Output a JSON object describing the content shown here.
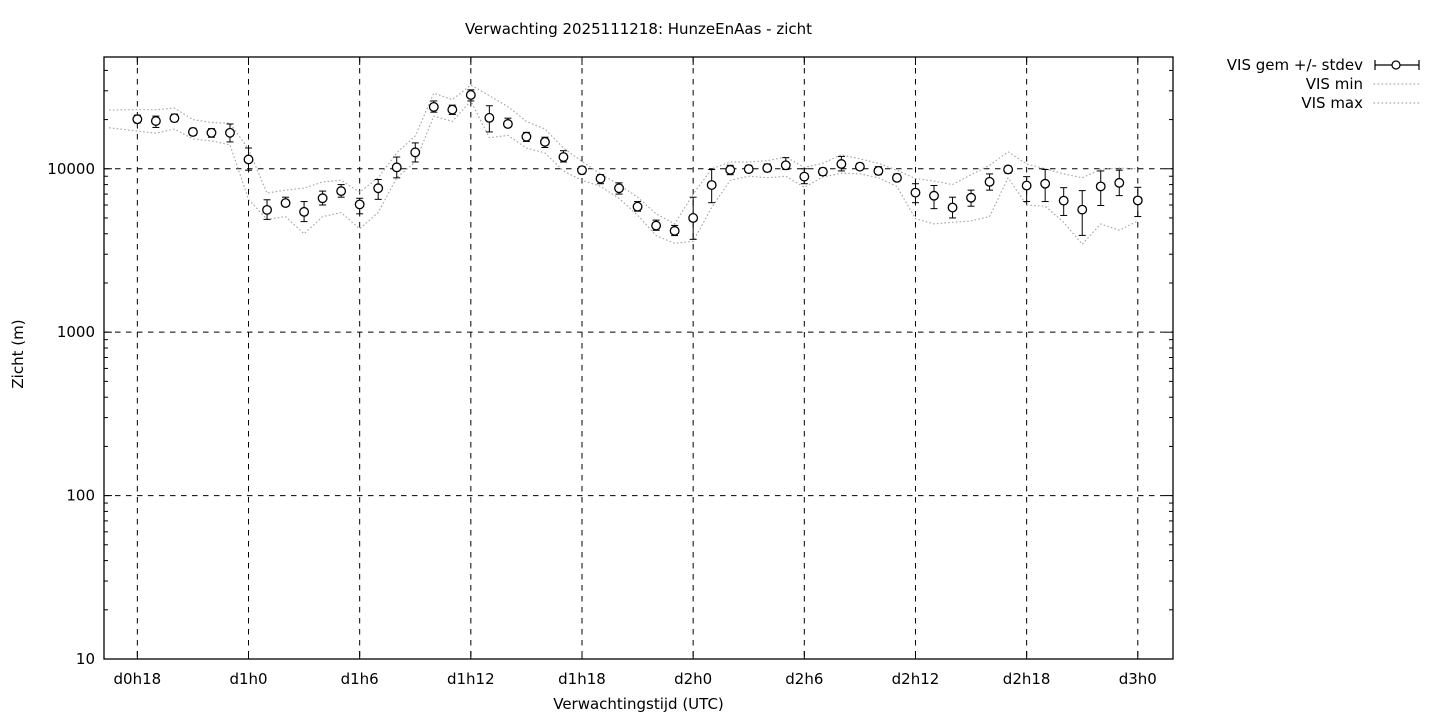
{
  "colors": {
    "foreground": "#000000",
    "background": "#ffffff",
    "dotted_line": "#a8a8a8"
  },
  "chart_data": {
    "type": "scatter",
    "title": "Verwachting 2025111218: HunzeEnAas - zicht",
    "xlabel": "Verwachtingstijd (UTC)",
    "ylabel": "Zicht (m)",
    "y_scale": "log",
    "ylim": [
      10,
      48300
    ],
    "xlim_hours": [
      16.2,
      73.9
    ],
    "grid": true,
    "legend_position": "outside-top-right",
    "x_ticks": [
      {
        "hour": 18,
        "label": "d0h18"
      },
      {
        "hour": 24,
        "label": "d1h0"
      },
      {
        "hour": 30,
        "label": "d1h6"
      },
      {
        "hour": 36,
        "label": "d1h12"
      },
      {
        "hour": 42,
        "label": "d1h18"
      },
      {
        "hour": 48,
        "label": "d2h0"
      },
      {
        "hour": 54,
        "label": "d2h6"
      },
      {
        "hour": 60,
        "label": "d2h12"
      },
      {
        "hour": 66,
        "label": "d2h18"
      },
      {
        "hour": 72,
        "label": "d3h0"
      }
    ],
    "y_ticks": [
      {
        "value": 10,
        "label": "10"
      },
      {
        "value": 100,
        "label": "100"
      },
      {
        "value": 1000,
        "label": "1000"
      },
      {
        "value": 10000,
        "label": "10000"
      }
    ],
    "series": [
      {
        "name": "VIS gem +/- stdev",
        "type": "errorbar-points",
        "marker": "open-circle",
        "color": "#000000",
        "x_hours": [
          18,
          19,
          20,
          21,
          22,
          23,
          24,
          25,
          26,
          27,
          28,
          29,
          30,
          31,
          32,
          33,
          34,
          35,
          36,
          37,
          38,
          39,
          40,
          41,
          42,
          43,
          44,
          45,
          46,
          47,
          48,
          49,
          50,
          51,
          52,
          53,
          54,
          55,
          56,
          57,
          58,
          59,
          60,
          61,
          62,
          63,
          64,
          65,
          66,
          67,
          68,
          69,
          70,
          71,
          72
        ],
        "values": [
          20100,
          19600,
          20400,
          16800,
          16600,
          16600,
          11400,
          5600,
          6170,
          5450,
          6600,
          7300,
          6050,
          7600,
          10200,
          12600,
          23900,
          23000,
          28300,
          20500,
          18800,
          15700,
          14600,
          11800,
          9800,
          8700,
          7600,
          5860,
          4490,
          4170,
          5000,
          7950,
          9850,
          9950,
          10100,
          10500,
          8950,
          9600,
          10700,
          10300,
          9700,
          8800,
          7140,
          6840,
          5790,
          6650,
          8320,
          9900,
          7890,
          8100,
          6380,
          5620,
          7800,
          8200,
          6400
        ],
        "err_lo": [
          19100,
          17900,
          19400,
          16000,
          15600,
          14600,
          9800,
          4900,
          5900,
          4750,
          6000,
          6700,
          5300,
          6500,
          8800,
          11000,
          22200,
          21500,
          26000,
          16800,
          18000,
          14700,
          13500,
          11000,
          9300,
          8100,
          7000,
          5500,
          4200,
          3900,
          3700,
          6200,
          9200,
          9500,
          9600,
          9900,
          8100,
          9100,
          9700,
          9900,
          9200,
          8400,
          6200,
          5700,
          5000,
          5900,
          7400,
          9400,
          6300,
          6300,
          5180,
          3910,
          5960,
          6850,
          5100
        ],
        "err_hi": [
          21300,
          21000,
          21600,
          17700,
          17600,
          18800,
          13400,
          6460,
          6700,
          6300,
          7300,
          8000,
          6600,
          8600,
          11800,
          14400,
          26000,
          24500,
          30400,
          24300,
          20400,
          16700,
          15600,
          12900,
          10300,
          9200,
          8200,
          6300,
          4850,
          4500,
          6700,
          9900,
          10500,
          10500,
          10700,
          11700,
          10000,
          10100,
          11900,
          10800,
          10300,
          9300,
          8100,
          7900,
          6700,
          7400,
          9300,
          10400,
          8950,
          9900,
          7660,
          7350,
          9700,
          9800,
          7700
        ]
      },
      {
        "name": "VIS min",
        "type": "dotted-line",
        "color": "#a8a8a8",
        "x_hours": [
          16.5,
          18,
          19,
          20,
          21,
          22,
          23,
          24,
          25,
          26,
          27,
          28,
          29,
          30,
          31,
          32,
          33,
          34,
          35,
          36,
          37,
          38,
          39,
          40,
          41,
          42,
          43,
          44,
          45,
          46,
          47,
          48,
          49,
          50,
          51,
          52,
          53,
          54,
          55,
          56,
          57,
          58,
          59,
          60,
          61,
          62,
          63,
          64,
          65,
          66,
          67,
          68,
          69,
          70,
          71,
          72
        ],
        "values": [
          17800,
          17000,
          16500,
          17500,
          15200,
          14800,
          14000,
          6500,
          4900,
          5100,
          4000,
          5100,
          5400,
          4300,
          5400,
          8800,
          11000,
          21000,
          19500,
          26000,
          15500,
          16000,
          13400,
          12500,
          9700,
          8500,
          7800,
          6600,
          5200,
          3900,
          3500,
          3600,
          5800,
          8500,
          9000,
          8800,
          9000,
          7700,
          8900,
          9400,
          9300,
          8800,
          7800,
          4950,
          4600,
          4700,
          4800,
          5100,
          8800,
          6000,
          5900,
          4700,
          3450,
          4600,
          4200,
          4800
        ]
      },
      {
        "name": "VIS max",
        "type": "dotted-line",
        "color": "#a8a8a8",
        "x_hours": [
          16.5,
          18,
          19,
          20,
          21,
          22,
          23,
          24,
          25,
          26,
          27,
          28,
          29,
          30,
          31,
          32,
          33,
          34,
          35,
          36,
          37,
          38,
          39,
          40,
          41,
          42,
          43,
          44,
          45,
          46,
          47,
          48,
          49,
          50,
          51,
          52,
          53,
          54,
          55,
          56,
          57,
          58,
          59,
          60,
          61,
          62,
          63,
          64,
          65,
          66,
          67,
          68,
          69,
          70,
          71,
          72
        ],
        "values": [
          22900,
          23000,
          23000,
          23500,
          20000,
          19200,
          19000,
          13200,
          7100,
          7400,
          7600,
          8300,
          8500,
          7200,
          8800,
          12500,
          15900,
          29000,
          26500,
          32500,
          28000,
          24000,
          19500,
          17500,
          13400,
          11100,
          9300,
          8000,
          6700,
          5300,
          4600,
          7000,
          10000,
          11000,
          11000,
          11200,
          11800,
          10200,
          10800,
          12200,
          11500,
          10800,
          9800,
          8700,
          8400,
          8000,
          9200,
          10500,
          12700,
          10700,
          10000,
          9300,
          8800,
          9900,
          10100,
          10000
        ]
      }
    ]
  }
}
